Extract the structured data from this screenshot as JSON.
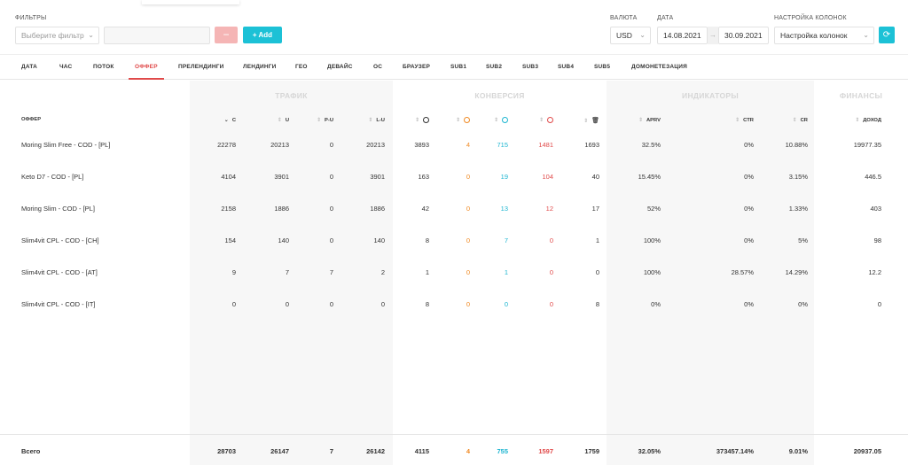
{
  "filters": {
    "label": "ФИЛЬТРЫ",
    "select_placeholder": "Выберите фильтр",
    "value_placeholder": "",
    "minus_label": "−",
    "add_label": "+ Add"
  },
  "currency": {
    "label": "ВАЛЮТА",
    "value": "USD"
  },
  "date": {
    "label": "ДАТА",
    "from": "14.08.2021",
    "arrow": "→",
    "to": "30.09.2021"
  },
  "columns_setting": {
    "label": "НАСТРОЙКА КОЛОНОК",
    "value": "Настройка колонок"
  },
  "tabs": [
    "ДАТА",
    "ЧАС",
    "ПОТОК",
    "ОФФЕР",
    "ПРЕЛЕНДИНГИ",
    "ЛЕНДИНГИ",
    "ГЕО",
    "ДЕВАЙС",
    "ОС",
    "БРАУЗЕР",
    "SUB1",
    "SUB2",
    "SUB3",
    "SUB4",
    "SUB5",
    "ДОМОНЕТЕЗАЦИЯ"
  ],
  "active_tab": "ОФФЕР",
  "groups": {
    "traffic": "ТРАФИК",
    "conversion": "КОНВЕРСИЯ",
    "indicators": "ИНДИКАТОРЫ",
    "finance": "ФИНАНСЫ"
  },
  "columns": {
    "offer": "ОФФЕР",
    "c": "C",
    "u": "U",
    "pu": "P-U",
    "lu": "L-U",
    "aprv": "APRV",
    "ctr": "CTR",
    "cr": "CR",
    "income": "ДОХОД"
  },
  "rows": [
    [
      "Moring Slim Free - COD - [PL]",
      "22278",
      "20213",
      "0",
      "20213",
      "3893",
      "4",
      "715",
      "1481",
      "1693",
      "32.5%",
      "0%",
      "10.88%",
      "19977.35"
    ],
    [
      "Keto D7 - COD - [PL]",
      "4104",
      "3901",
      "0",
      "3901",
      "163",
      "0",
      "19",
      "104",
      "40",
      "15.45%",
      "0%",
      "3.15%",
      "446.5"
    ],
    [
      "Moring Slim - COD - [PL]",
      "2158",
      "1886",
      "0",
      "1886",
      "42",
      "0",
      "13",
      "12",
      "17",
      "52%",
      "0%",
      "1.33%",
      "403"
    ],
    [
      "Slim4vit CPL - COD - [CH]",
      "154",
      "140",
      "0",
      "140",
      "8",
      "0",
      "7",
      "0",
      "1",
      "100%",
      "0%",
      "5%",
      "98"
    ],
    [
      "Slim4vit CPL - COD - [AT]",
      "9",
      "7",
      "7",
      "2",
      "1",
      "0",
      "1",
      "0",
      "0",
      "100%",
      "28.57%",
      "14.29%",
      "12.2"
    ],
    [
      "Slim4vit CPL - COD - [IT]",
      "0",
      "0",
      "0",
      "0",
      "8",
      "0",
      "0",
      "0",
      "8",
      "0%",
      "0%",
      "0%",
      "0"
    ]
  ],
  "totals": [
    "Всего",
    "28703",
    "26147",
    "7",
    "26142",
    "4115",
    "4",
    "755",
    "1597",
    "1759",
    "32.05%",
    "373457.14%",
    "9.01%",
    "20937.05"
  ],
  "colors": {
    "accent": "#1cc1d6",
    "active_tab": "#e04a4a",
    "orange": "#f08a24",
    "cyan": "#1cb5d0",
    "red": "#e04a4a"
  }
}
